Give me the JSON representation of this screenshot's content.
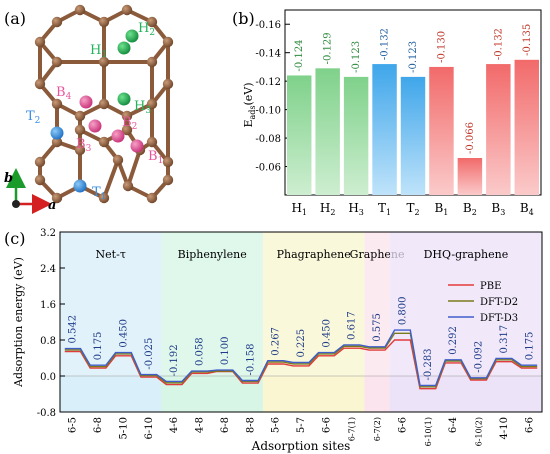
{
  "panels": {
    "a": "(a)",
    "b": "(b)",
    "c": "(c)"
  },
  "structure": {
    "site_labels": [
      "H1",
      "H2",
      "H3",
      "B4",
      "T2",
      "B3",
      "B2",
      "B1",
      "T1"
    ],
    "axes": {
      "b": "b",
      "a": "a"
    },
    "colors": {
      "carbon": "#8a5a3b",
      "H_site": "#22b35a",
      "T_site": "#3a8ee6",
      "B_site": "#e8559a"
    }
  },
  "chart_data": [
    {
      "type": "bar",
      "panel": "b",
      "title": "",
      "xlabel": "",
      "ylabel": "E_ads(eV)",
      "ylim": [
        -0.04,
        -0.17
      ],
      "yticks": [
        -0.06,
        -0.08,
        -0.1,
        -0.12,
        -0.14,
        -0.16
      ],
      "ytick_labels": [
        "-0.06",
        "-0.08",
        "-0.10",
        "-0.12",
        "-0.14",
        "-0.16"
      ],
      "categories": [
        "H1",
        "H2",
        "H3",
        "T1",
        "T2",
        "B1",
        "B2",
        "B3",
        "B4"
      ],
      "values": [
        -0.124,
        -0.129,
        -0.123,
        -0.132,
        -0.123,
        -0.13,
        -0.066,
        -0.132,
        -0.135
      ],
      "value_labels": [
        "-0.124",
        "-0.129",
        "-0.123",
        "-0.132",
        "-0.123",
        "-0.130",
        "-0.066",
        "-0.132",
        "-0.135"
      ],
      "colors": {
        "H": [
          "#7fd18a",
          "#cdeed0"
        ],
        "T": [
          "#3fa6ea",
          "#bfe3fa"
        ],
        "B": [
          "#f26a6a",
          "#fbcaca"
        ]
      },
      "label_colors": {
        "H": "#2e8b3e",
        "T": "#1f5f9e",
        "B": "#c0392b"
      }
    },
    {
      "type": "line",
      "panel": "c",
      "title": "",
      "xlabel": "Adsorption sites",
      "ylabel": "Adsorption energy (eV)",
      "ylim": [
        -0.8,
        3.2
      ],
      "yticks": [
        -0.8,
        0.0,
        0.8,
        1.6,
        2.4,
        3.2
      ],
      "ytick_labels": [
        "-0.8",
        "0.0",
        "0.8",
        "1.6",
        "2.4",
        "3.2"
      ],
      "grid": false,
      "legend_position": "right",
      "regions": [
        {
          "name": "Net-τ",
          "start": 0,
          "end": 4,
          "color": "#d8eefa"
        },
        {
          "name": "Biphenylene",
          "start": 4,
          "end": 8,
          "color": "#d6f5e6"
        },
        {
          "name": "Phagraphene",
          "start": 8,
          "end": 12,
          "color": "#f8f5cf"
        },
        {
          "name": "Graphene",
          "start": 12,
          "end": 13,
          "color": "#fbe3ec"
        },
        {
          "name": "DHQ-graphene",
          "start": 13,
          "end": 18,
          "color": "#ece2f8"
        }
      ],
      "categories": [
        "6-5",
        "6-8",
        "5-10",
        "6-10",
        "4-6",
        "4-8",
        "6-8",
        "8-8",
        "5-6",
        "5-7",
        "6-6",
        "6-7(1)",
        "6-7(2)",
        "6-6",
        "6-10(1)",
        "6-4",
        "6-10(2)",
        "4-10",
        "6-6"
      ],
      "series": [
        {
          "name": "PBE",
          "color": "#e23b3b",
          "values": [
            0.542,
            0.175,
            0.45,
            -0.025,
            -0.192,
            0.058,
            0.1,
            -0.158,
            0.267,
            0.225,
            0.45,
            0.617,
            0.575,
            0.8,
            -0.283,
            0.292,
            -0.092,
            0.317,
            0.175
          ]
        },
        {
          "name": "DFT-D2",
          "color": "#7a7a1a",
          "values": [
            0.58,
            0.21,
            0.49,
            0.01,
            -0.15,
            0.09,
            0.11,
            -0.12,
            0.31,
            0.27,
            0.49,
            0.66,
            0.62,
            0.95,
            -0.24,
            0.33,
            -0.06,
            0.36,
            0.21
          ]
        },
        {
          "name": "DFT-D3",
          "color": "#3f5ec9",
          "values": [
            0.61,
            0.24,
            0.52,
            0.03,
            -0.12,
            0.11,
            0.13,
            -0.1,
            0.34,
            0.3,
            0.52,
            0.69,
            0.65,
            1.02,
            -0.21,
            0.36,
            -0.04,
            0.39,
            0.24
          ]
        }
      ],
      "value_labels": [
        "0.542",
        "0.175",
        "0.450",
        "-0.025",
        "-0.192",
        "0.058",
        "0.100",
        "-0.158",
        "0.267",
        "0.225",
        "0.450",
        "0.617",
        "0.575",
        "0.800",
        "-0.283",
        "0.292",
        "-0.092",
        "0.317",
        "0.175"
      ]
    }
  ]
}
